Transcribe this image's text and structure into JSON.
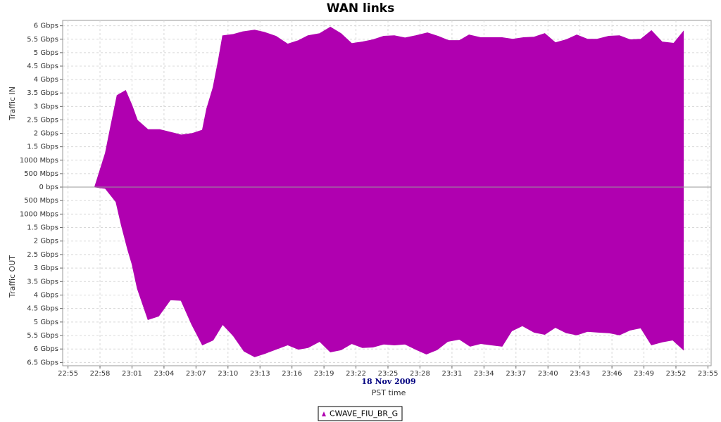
{
  "chart_data": [
    {
      "type": "area",
      "title": "WAN links",
      "ylabel": "Traffic IN",
      "xlim": [
        1374.5,
        1435.3
      ],
      "ylim": [
        0,
        6.2
      ],
      "yticks": [
        {
          "value": 0,
          "label": "0 bps"
        },
        {
          "value": 0.5,
          "label": "500 Mbps"
        },
        {
          "value": 1,
          "label": "1000 Mbps"
        },
        {
          "value": 1.5,
          "label": "1.5 Gbps"
        },
        {
          "value": 2,
          "label": "2 Gbps"
        },
        {
          "value": 2.5,
          "label": "2.5 Gbps"
        },
        {
          "value": 3,
          "label": "3 Gbps"
        },
        {
          "value": 3.5,
          "label": "3.5 Gbps"
        },
        {
          "value": 4,
          "label": "4 Gbps"
        },
        {
          "value": 4.5,
          "label": "4.5 Gbps"
        },
        {
          "value": 5,
          "label": "5 Gbps"
        },
        {
          "value": 5.5,
          "label": "5.5 Gbps"
        },
        {
          "value": 6,
          "label": "6 Gbps"
        }
      ],
      "grid": true,
      "inverted": false,
      "x": [
        1377.5,
        1378.5,
        1379.0,
        1379.6,
        1380.4,
        1381.0,
        1381.5,
        1382.5,
        1383.6,
        1384.7,
        1385.6,
        1386.6,
        1387.6,
        1388.0,
        1388.6,
        1389.1,
        1389.5,
        1390.5,
        1391.4,
        1392.5,
        1393.4,
        1394.5,
        1395.6,
        1396.6,
        1397.5,
        1398.6,
        1399.6,
        1400.6,
        1401.6,
        1402.6,
        1403.6,
        1404.6,
        1405.6,
        1406.6,
        1407.6,
        1408.7,
        1409.7,
        1410.7,
        1411.7,
        1412.6,
        1413.7,
        1414.7,
        1415.7,
        1416.7,
        1417.7,
        1418.7,
        1419.7,
        1420.7,
        1421.7,
        1422.7,
        1423.7,
        1424.6,
        1425.7,
        1426.7,
        1427.7,
        1428.7,
        1429.7,
        1430.7,
        1431.8,
        1432.7
      ],
      "series": [
        {
          "name": "CWAVE_FIU_BR_G",
          "color": "#b000b0",
          "values": [
            0,
            1.26,
            2.25,
            3.41,
            3.59,
            3.04,
            2.49,
            2.14,
            2.14,
            2.03,
            1.94,
            1.99,
            2.12,
            2.91,
            3.7,
            4.72,
            5.63,
            5.68,
            5.78,
            5.84,
            5.76,
            5.61,
            5.32,
            5.45,
            5.63,
            5.71,
            5.95,
            5.71,
            5.34,
            5.4,
            5.48,
            5.61,
            5.63,
            5.55,
            5.63,
            5.74,
            5.61,
            5.45,
            5.45,
            5.66,
            5.56,
            5.56,
            5.56,
            5.5,
            5.56,
            5.58,
            5.71,
            5.37,
            5.48,
            5.66,
            5.5,
            5.5,
            5.61,
            5.63,
            5.48,
            5.5,
            5.82,
            5.4,
            5.35,
            5.79
          ]
        }
      ]
    },
    {
      "type": "area",
      "ylabel": "Traffic OUT",
      "xlabel": "PST time",
      "date": "18 Nov 2009",
      "xlim": [
        1374.5,
        1435.3
      ],
      "ylim": [
        0,
        6.62
      ],
      "inverted": true,
      "grid": true,
      "xticks": [
        {
          "value": 1375,
          "label": "22:55"
        },
        {
          "value": 1378,
          "label": "22:58"
        },
        {
          "value": 1381,
          "label": "23:01"
        },
        {
          "value": 1384,
          "label": "23:04"
        },
        {
          "value": 1387,
          "label": "23:07"
        },
        {
          "value": 1390,
          "label": "23:10"
        },
        {
          "value": 1393,
          "label": "23:13"
        },
        {
          "value": 1396,
          "label": "23:16"
        },
        {
          "value": 1399,
          "label": "23:19"
        },
        {
          "value": 1402,
          "label": "23:22"
        },
        {
          "value": 1405,
          "label": "23:25"
        },
        {
          "value": 1408,
          "label": "23:28"
        },
        {
          "value": 1411,
          "label": "23:31"
        },
        {
          "value": 1414,
          "label": "23:34"
        },
        {
          "value": 1417,
          "label": "23:37"
        },
        {
          "value": 1420,
          "label": "23:40"
        },
        {
          "value": 1423,
          "label": "23:43"
        },
        {
          "value": 1426,
          "label": "23:46"
        },
        {
          "value": 1429,
          "label": "23:49"
        },
        {
          "value": 1432,
          "label": "23:52"
        },
        {
          "value": 1435,
          "label": "23:55"
        }
      ],
      "yticks": [
        {
          "value": 0.5,
          "label": "500 Mbps"
        },
        {
          "value": 1,
          "label": "1000 Mbps"
        },
        {
          "value": 1.5,
          "label": "1.5 Gbps"
        },
        {
          "value": 2,
          "label": "2 Gbps"
        },
        {
          "value": 2.5,
          "label": "2.5 Gbps"
        },
        {
          "value": 3,
          "label": "3 Gbps"
        },
        {
          "value": 3.5,
          "label": "3.5 Gbps"
        },
        {
          "value": 4,
          "label": "4 Gbps"
        },
        {
          "value": 4.5,
          "label": "4.5 Gbps"
        },
        {
          "value": 5,
          "label": "5 Gbps"
        },
        {
          "value": 5.5,
          "label": "5.5 Gbps"
        },
        {
          "value": 6,
          "label": "6 Gbps"
        },
        {
          "value": 6.5,
          "label": "6.5 Gbps"
        }
      ],
      "x": [
        1377.5,
        1378.5,
        1379.5,
        1380.0,
        1380.6,
        1381.0,
        1381.5,
        1382.5,
        1383.5,
        1384.6,
        1385.6,
        1386.6,
        1387.6,
        1388.6,
        1389.5,
        1390.5,
        1391.5,
        1392.5,
        1393.5,
        1394.5,
        1395.6,
        1396.6,
        1397.5,
        1398.6,
        1399.6,
        1400.6,
        1401.6,
        1402.6,
        1403.6,
        1404.6,
        1405.6,
        1406.6,
        1407.7,
        1408.6,
        1409.6,
        1410.6,
        1411.7,
        1412.7,
        1413.7,
        1414.7,
        1415.7,
        1416.6,
        1417.6,
        1418.7,
        1419.7,
        1420.7,
        1421.7,
        1422.7,
        1423.7,
        1424.7,
        1425.7,
        1426.7,
        1427.7,
        1428.7,
        1429.7,
        1430.7,
        1431.7,
        1432.7
      ],
      "series": [
        {
          "color": "#b000b0",
          "values": [
            0,
            0.05,
            0.55,
            1.41,
            2.32,
            2.85,
            3.76,
            4.91,
            4.78,
            4.18,
            4.2,
            5.09,
            5.85,
            5.67,
            5.09,
            5.51,
            6.08,
            6.29,
            6.16,
            6.01,
            5.85,
            6.01,
            5.95,
            5.72,
            6.11,
            6.03,
            5.8,
            5.95,
            5.93,
            5.82,
            5.85,
            5.82,
            6.03,
            6.19,
            6.03,
            5.72,
            5.64,
            5.9,
            5.8,
            5.85,
            5.9,
            5.33,
            5.14,
            5.38,
            5.46,
            5.2,
            5.4,
            5.48,
            5.35,
            5.38,
            5.4,
            5.48,
            5.3,
            5.22,
            5.85,
            5.74,
            5.67,
            6.03
          ]
        }
      ]
    }
  ]
}
